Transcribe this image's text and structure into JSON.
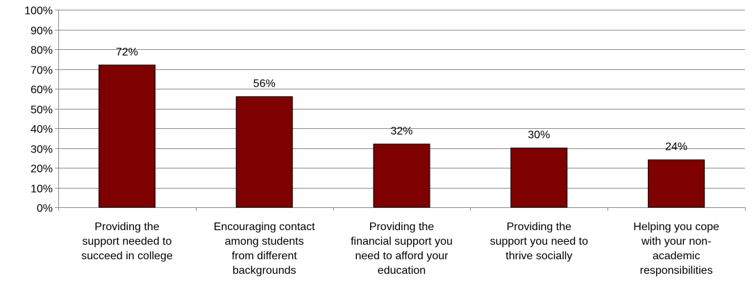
{
  "chart_data": {
    "type": "bar",
    "categories": [
      [
        "Providing the",
        "support needed to",
        "succeed in college"
      ],
      [
        "Encouraging contact",
        "among students",
        "from different",
        "backgrounds"
      ],
      [
        "Providing the",
        "financial support you",
        "need to afford your",
        "education"
      ],
      [
        "Providing the",
        "support you need to",
        "thrive socially"
      ],
      [
        "Helping you cope",
        "with your non-",
        "academic",
        "responsibilities"
      ]
    ],
    "values": [
      72,
      56,
      32,
      30,
      24
    ],
    "value_labels": [
      "72%",
      "56%",
      "32%",
      "30%",
      "24%"
    ],
    "y_ticks": [
      {
        "value": 0,
        "label": "0%"
      },
      {
        "value": 10,
        "label": "10%"
      },
      {
        "value": 20,
        "label": "20%"
      },
      {
        "value": 30,
        "label": "30%"
      },
      {
        "value": 40,
        "label": "40%"
      },
      {
        "value": 50,
        "label": "50%"
      },
      {
        "value": 60,
        "label": "60%"
      },
      {
        "value": 70,
        "label": "70%"
      },
      {
        "value": 80,
        "label": "80%"
      },
      {
        "value": 90,
        "label": "90%"
      },
      {
        "value": 100,
        "label": "100%"
      }
    ],
    "ylim": [
      0,
      100
    ],
    "grid": true,
    "colors": {
      "bar_fill": "#7f0000",
      "bar_stroke": "#000000",
      "grid": "#8c8c8c",
      "axis": "#8c8c8c",
      "text": "#000000"
    }
  }
}
